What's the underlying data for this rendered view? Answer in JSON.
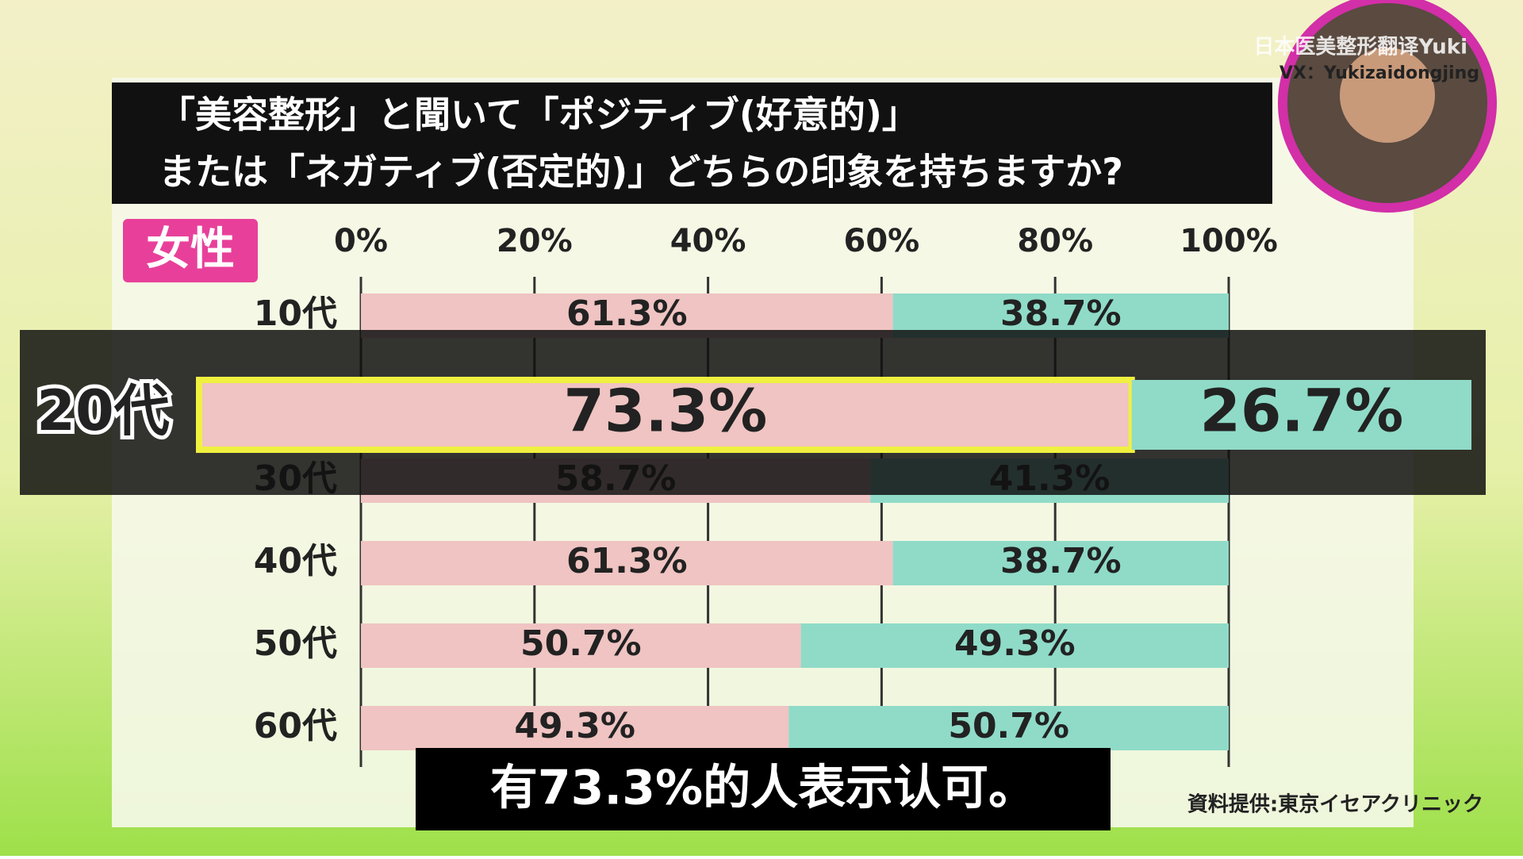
{
  "chart_data": {
    "type": "stacked-bar-horizontal",
    "title": [
      "「美容整形」と聞いて「ポジティブ(好意的)」",
      "または「ネガティブ(否定的)」どちらの印象を持ちますか?"
    ],
    "group_label": "女性",
    "categories": [
      "10代",
      "20代",
      "30代",
      "40代",
      "50代",
      "60代"
    ],
    "series": [
      {
        "color": "#efc4c2",
        "values": [
          61.3,
          73.3,
          58.7,
          61.3,
          50.7,
          49.3
        ],
        "value_labels": [
          "61.3%",
          "73.3%",
          "58.7%",
          "61.3%",
          "50.7%",
          "49.3%"
        ]
      },
      {
        "color": "#8fdbc8",
        "values": [
          38.7,
          26.7,
          41.3,
          38.7,
          49.3,
          50.7
        ],
        "value_labels": [
          "38.7%",
          "26.7%",
          "41.3%",
          "38.7%",
          "49.3%",
          "50.7%"
        ]
      }
    ],
    "xlim": [
      0,
      100
    ],
    "xticks": [
      {
        "value": 0,
        "label": "0%"
      },
      {
        "value": 20,
        "label": "20%"
      },
      {
        "value": 40,
        "label": "40%"
      },
      {
        "value": 60,
        "label": "60%"
      },
      {
        "value": 80,
        "label": "80%"
      },
      {
        "value": 100,
        "label": "100%"
      }
    ],
    "grid": true,
    "highlight_index": 1,
    "source": "資料提供:東京イセアクリニック",
    "caption": "有73.3%的人表示认可。",
    "watermark": [
      "日本医美整形翻译Yuki",
      "VX：Yukizaidongjing"
    ]
  }
}
